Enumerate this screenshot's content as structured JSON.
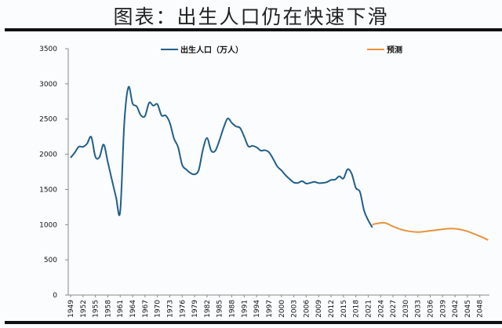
{
  "title": "图表：出生人口仍在快速下滑",
  "chart_data": {
    "type": "line",
    "title": "",
    "xlabel": "",
    "ylabel": "",
    "ylim": [
      0,
      3500
    ],
    "yticks": [
      0,
      500,
      1000,
      1500,
      2000,
      2500,
      3000,
      3500
    ],
    "xlim": [
      1949,
      2050
    ],
    "xticks": [
      1949,
      1952,
      1955,
      1958,
      1961,
      1964,
      1967,
      1970,
      1973,
      1976,
      1979,
      1982,
      1985,
      1988,
      1991,
      1994,
      1997,
      2000,
      2003,
      2006,
      2009,
      2012,
      2015,
      2018,
      2021,
      2024,
      2027,
      2030,
      2033,
      2036,
      2039,
      2042,
      2045,
      2048
    ],
    "grid": false,
    "legend_position": "top",
    "series": [
      {
        "name": "出生人口（万人）",
        "color": "#1f5f8b",
        "x": [
          1949,
          1950,
          1951,
          1952,
          1953,
          1954,
          1955,
          1956,
          1957,
          1958,
          1959,
          1960,
          1961,
          1962,
          1963,
          1964,
          1965,
          1966,
          1967,
          1968,
          1969,
          1970,
          1971,
          1972,
          1973,
          1974,
          1975,
          1976,
          1977,
          1978,
          1979,
          1980,
          1981,
          1982,
          1983,
          1984,
          1985,
          1986,
          1987,
          1988,
          1989,
          1990,
          1991,
          1992,
          1993,
          1994,
          1995,
          1996,
          1997,
          1998,
          1999,
          2000,
          2001,
          2002,
          2003,
          2004,
          2005,
          2006,
          2007,
          2008,
          2009,
          2010,
          2011,
          2012,
          2013,
          2014,
          2015,
          2016,
          2017,
          2018,
          2019,
          2020,
          2021,
          2022
        ],
        "y": [
          1950,
          2023,
          2107,
          2105,
          2151,
          2245,
          1965,
          1961,
          2138,
          1889,
          1635,
          1389,
          1187,
          2451,
          2954,
          2721,
          2679,
          2554,
          2543,
          2731,
          2690,
          2710,
          2551,
          2550,
          2447,
          2226,
          2102,
          1849,
          1783,
          1733,
          1715,
          1776,
          2064,
          2230,
          2052,
          2050,
          2196,
          2374,
          2508,
          2445,
          2396,
          2374,
          2250,
          2113,
          2120,
          2098,
          2052,
          2057,
          2028,
          1934,
          1827,
          1771,
          1702,
          1647,
          1599,
          1593,
          1617,
          1584,
          1594,
          1608,
          1591,
          1592,
          1604,
          1635,
          1640,
          1687,
          1655,
          1786,
          1723,
          1523,
          1465,
          1200,
          1062,
          960
        ]
      },
      {
        "name": "预测",
        "color": "#e8923a",
        "x": [
          2022,
          2023,
          2025,
          2027,
          2029,
          2031,
          2033,
          2035,
          2037,
          2039,
          2041,
          2043,
          2045,
          2047,
          2049,
          2050
        ],
        "y": [
          1000,
          1015,
          1025,
          975,
          930,
          905,
          895,
          905,
          920,
          935,
          945,
          935,
          905,
          860,
          810,
          780
        ]
      }
    ]
  }
}
